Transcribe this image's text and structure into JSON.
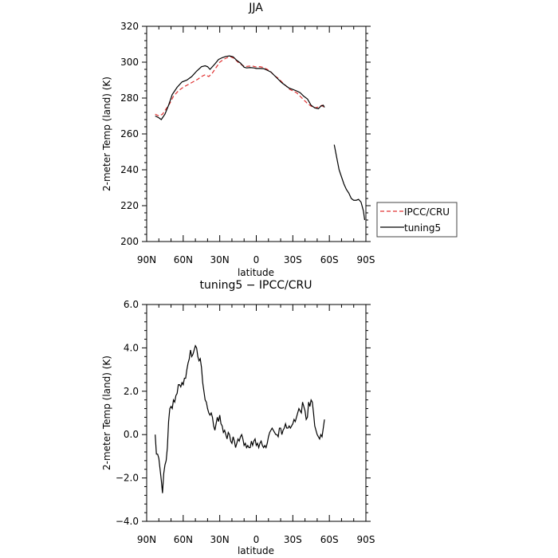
{
  "chart_data": [
    {
      "type": "line",
      "title": "JJA",
      "xlabel": "latitude",
      "ylabel": "2-meter Temp (land) (K)",
      "xlim": [
        90,
        -90
      ],
      "ylim": [
        200,
        320
      ],
      "xticks": [
        {
          "value": 90,
          "label": "90N"
        },
        {
          "value": 60,
          "label": "60N"
        },
        {
          "value": 30,
          "label": "30N"
        },
        {
          "value": 0,
          "label": "0"
        },
        {
          "value": -30,
          "label": "30S"
        },
        {
          "value": -60,
          "label": "60S"
        },
        {
          "value": -90,
          "label": "90S"
        }
      ],
      "yticks": [
        {
          "value": 200,
          "label": "200"
        },
        {
          "value": 220,
          "label": "220"
        },
        {
          "value": 240,
          "label": "240"
        },
        {
          "value": 260,
          "label": "260"
        },
        {
          "value": 280,
          "label": "280"
        },
        {
          "value": 300,
          "label": "300"
        },
        {
          "value": 320,
          "label": "320"
        }
      ],
      "legend_position": "right, outside plot",
      "series": [
        {
          "name": "IPCC/CRU",
          "color": "#e03030",
          "style": "dashed",
          "x": [
            83,
            80,
            77,
            74,
            71,
            68,
            64,
            60,
            56,
            52,
            48,
            45,
            42,
            39,
            36,
            33,
            30,
            27,
            24,
            21,
            18,
            15,
            12,
            9,
            6,
            3,
            0,
            -3,
            -6,
            -9,
            -12,
            -15,
            -18,
            -21,
            -24,
            -27,
            -30,
            -33,
            -36,
            -39,
            -42,
            -45,
            -48,
            -51,
            -54,
            -56
          ],
          "y": [
            271,
            270,
            271,
            274,
            277,
            281,
            284,
            286,
            287.5,
            289,
            290.5,
            292,
            293,
            292,
            294,
            297,
            300,
            301.5,
            302.5,
            303,
            302,
            300,
            298.5,
            297.5,
            297.8,
            297.8,
            297.3,
            297.5,
            297,
            296,
            294.5,
            292.5,
            291,
            289,
            287,
            285,
            284,
            283,
            281,
            279,
            277,
            275.5,
            274.5,
            275,
            276,
            274
          ]
        },
        {
          "name": "tuning5",
          "color": "#000000",
          "style": "solid",
          "x": [
            83,
            80,
            78,
            75,
            72,
            69,
            65,
            61,
            57,
            53,
            49,
            45,
            42,
            40,
            38,
            36,
            34,
            31,
            28,
            25,
            22,
            19,
            16,
            13,
            10,
            8,
            5,
            2,
            0,
            -3,
            -6,
            -9,
            -12,
            -15,
            -18,
            -21,
            -24,
            -27,
            -30,
            -33,
            -36,
            -39,
            -42,
            -45,
            -48,
            -51,
            -53,
            -55,
            -56,
            null,
            -64,
            -66,
            -68,
            -70,
            -72,
            -74,
            -76,
            -78,
            -80,
            -82,
            -84,
            -86,
            -88,
            -89
          ],
          "y": [
            270,
            269,
            268,
            271,
            276,
            282,
            286,
            289,
            290,
            292,
            295,
            297.5,
            298,
            297.5,
            296,
            297.5,
            299,
            301.5,
            302.5,
            303.2,
            303.5,
            303,
            301,
            299.5,
            297.2,
            296.8,
            297,
            296.8,
            296.5,
            296.5,
            296.4,
            295.5,
            294.5,
            292.5,
            290.5,
            288.5,
            287,
            285.5,
            284.8,
            284,
            283,
            281,
            279.5,
            276,
            274.5,
            274,
            275.5,
            276,
            274.8,
            null,
            254,
            247,
            240,
            236,
            232,
            229,
            227,
            224,
            223,
            223,
            223.5,
            222,
            217,
            212
          ]
        }
      ]
    },
    {
      "type": "line",
      "title": "tuning5 − IPCC/CRU",
      "xlabel": "latitude",
      "ylabel": "2-meter Temp (land) (K)",
      "xlim": [
        90,
        -90
      ],
      "ylim": [
        -4,
        6
      ],
      "xticks": [
        {
          "value": 90,
          "label": "90N"
        },
        {
          "value": 60,
          "label": "60N"
        },
        {
          "value": 30,
          "label": "30N"
        },
        {
          "value": 0,
          "label": "0"
        },
        {
          "value": -30,
          "label": "30S"
        },
        {
          "value": -60,
          "label": "60S"
        },
        {
          "value": -90,
          "label": "90S"
        }
      ],
      "yticks": [
        {
          "value": -4,
          "label": "−4.0"
        },
        {
          "value": -2,
          "label": "−2.0"
        },
        {
          "value": 0,
          "label": "0.0"
        },
        {
          "value": 2,
          "label": "2.0"
        },
        {
          "value": 4,
          "label": "4.0"
        },
        {
          "value": 6,
          "label": "6.0"
        }
      ],
      "series": [
        {
          "color": "#000000",
          "style": "solid",
          "x": [
            83,
            82,
            81,
            80,
            79,
            78,
            77,
            76,
            75,
            74,
            73,
            72,
            71,
            70,
            69,
            68,
            67,
            66,
            65,
            64,
            63,
            62,
            61,
            60,
            59,
            58,
            57,
            56,
            55,
            54,
            53,
            52,
            51,
            50,
            49,
            48,
            47,
            46,
            45,
            44,
            43,
            42,
            41,
            40,
            39,
            38,
            37,
            36,
            35,
            34,
            33,
            32,
            31,
            30,
            29,
            28,
            27,
            26,
            25,
            24,
            23,
            22,
            21,
            20,
            19,
            18,
            17,
            16,
            15,
            14,
            13,
            12,
            11,
            10,
            9,
            8,
            7,
            6,
            5,
            4,
            3,
            2,
            1,
            0,
            -1,
            -2,
            -3,
            -4,
            -5,
            -6,
            -7,
            -8,
            -9,
            -10,
            -11,
            -12,
            -13,
            -14,
            -15,
            -16,
            -17,
            -18,
            -19,
            -20,
            -21,
            -22,
            -23,
            -24,
            -25,
            -26,
            -27,
            -28,
            -29,
            -30,
            -31,
            -32,
            -33,
            -34,
            -35,
            -36,
            -37,
            -38,
            -39,
            -40,
            -41,
            -42,
            -43,
            -44,
            -45,
            -46,
            -47,
            -48,
            -49,
            -50,
            -51,
            -52,
            -53,
            -54,
            -55,
            -56
          ],
          "y": [
            0.0,
            -0.9,
            -0.9,
            -1.1,
            -1.6,
            -2.1,
            -2.7,
            -1.8,
            -1.4,
            -1.2,
            -0.6,
            0.6,
            1.2,
            1.3,
            1.2,
            1.6,
            1.5,
            1.8,
            1.9,
            2.3,
            2.3,
            2.2,
            2.4,
            2.3,
            2.6,
            2.6,
            3.0,
            3.3,
            3.5,
            3.9,
            3.6,
            3.7,
            3.9,
            4.1,
            4.0,
            3.6,
            3.4,
            3.5,
            3.1,
            2.4,
            2.0,
            1.6,
            1.5,
            1.2,
            1.0,
            0.9,
            1.0,
            0.8,
            0.4,
            0.2,
            0.5,
            0.8,
            0.6,
            0.9,
            0.5,
            0.4,
            0.1,
            0.2,
            0.0,
            -0.2,
            0.1,
            0.0,
            -0.3,
            -0.4,
            -0.1,
            -0.3,
            -0.6,
            -0.4,
            -0.2,
            -0.3,
            -0.1,
            0.0,
            -0.2,
            -0.5,
            -0.4,
            -0.6,
            -0.5,
            -0.6,
            -0.6,
            -0.3,
            -0.5,
            -0.3,
            -0.2,
            -0.5,
            -0.4,
            -0.6,
            -0.4,
            -0.3,
            -0.5,
            -0.6,
            -0.5,
            -0.6,
            -0.4,
            -0.1,
            0.1,
            0.2,
            0.3,
            0.2,
            0.1,
            0.0,
            0.0,
            -0.1,
            0.3,
            0.3,
            0.0,
            0.2,
            0.3,
            0.5,
            0.3,
            0.3,
            0.4,
            0.3,
            0.4,
            0.5,
            0.7,
            0.6,
            0.8,
            1.0,
            1.2,
            1.1,
            1.0,
            1.5,
            1.3,
            1.1,
            0.7,
            0.8,
            1.5,
            1.3,
            1.6,
            1.5,
            1.0,
            0.4,
            0.2,
            0.0,
            -0.1,
            -0.2,
            0.0,
            -0.1,
            0.3,
            0.7
          ]
        }
      ]
    }
  ]
}
